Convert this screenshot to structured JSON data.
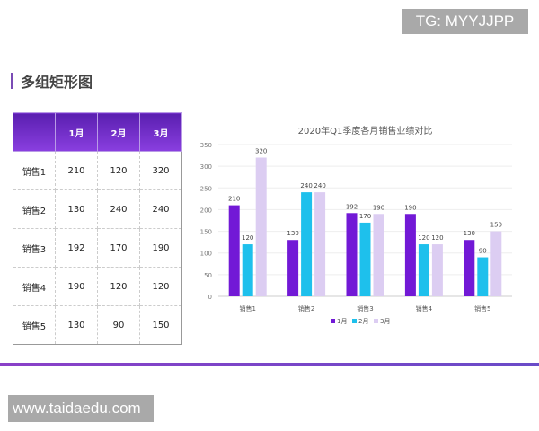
{
  "watermark_top": "TG: MYYJJPP",
  "watermark_bottom": "www.taidaedu.com",
  "heading": "多组矩形图",
  "table": {
    "headers": [
      "",
      "1月",
      "2月",
      "3月"
    ],
    "rows": [
      [
        "销售1",
        "210",
        "120",
        "320"
      ],
      [
        "销售2",
        "130",
        "240",
        "240"
      ],
      [
        "销售3",
        "192",
        "170",
        "190"
      ],
      [
        "销售4",
        "190",
        "120",
        "120"
      ],
      [
        "销售5",
        "130",
        "90",
        "150"
      ]
    ]
  },
  "chart_data": {
    "type": "bar",
    "title": "2020年Q1季度各月销售业绩对比",
    "categories": [
      "销售1",
      "销售2",
      "销售3",
      "销售4",
      "销售5"
    ],
    "series": [
      {
        "name": "1月",
        "values": [
          210,
          130,
          192,
          190,
          130
        ],
        "color": "#7219d6"
      },
      {
        "name": "2月",
        "values": [
          120,
          240,
          170,
          120,
          90
        ],
        "color": "#1ec0ec"
      },
      {
        "name": "3月",
        "values": [
          320,
          240,
          190,
          120,
          150
        ],
        "color": "#dccdf2"
      }
    ],
    "ylim": [
      0,
      350
    ],
    "yticks": [
      0,
      50,
      100,
      150,
      200,
      250,
      300,
      350
    ],
    "grid": true,
    "legend": "bottom",
    "data_labels": true
  }
}
